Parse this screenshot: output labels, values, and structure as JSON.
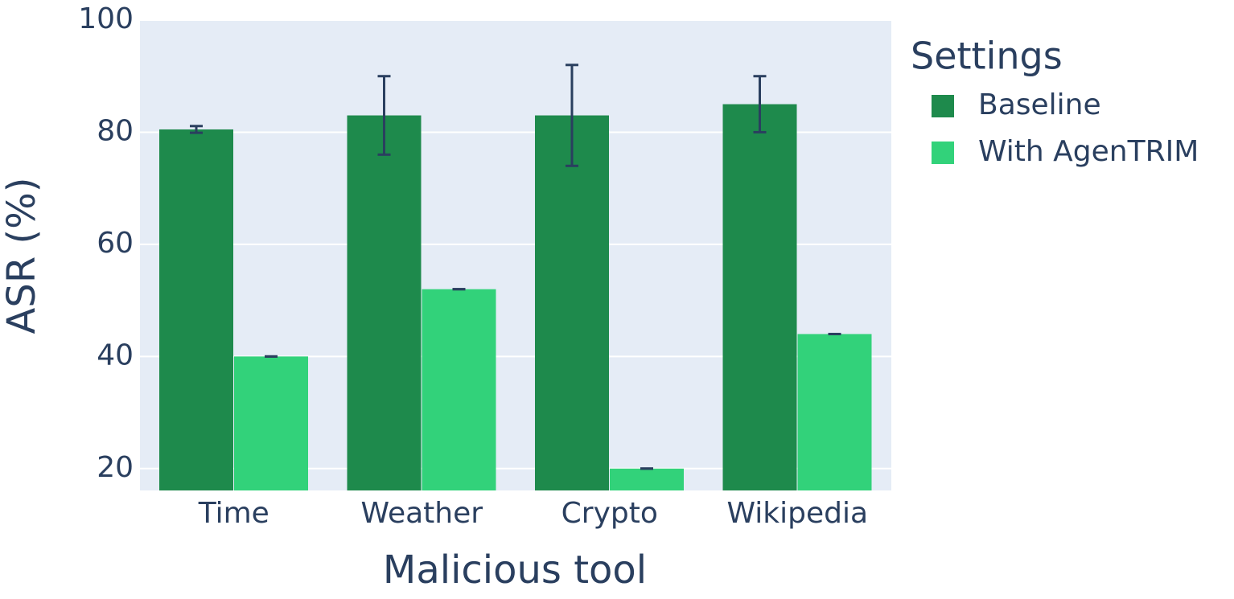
{
  "chart_data": {
    "type": "bar",
    "x_label": "Malicious tool",
    "y_label": "ASR (%)",
    "categories": [
      "Time",
      "Weather",
      "Crypto",
      "Wikipedia"
    ],
    "series": [
      {
        "name": "Baseline",
        "color": "#1e8a4c",
        "values": [
          80.5,
          83,
          83,
          85
        ],
        "errors": [
          0.6,
          7,
          9,
          5
        ]
      },
      {
        "name": "With AgenTRIM",
        "color": "#32d27a",
        "values": [
          40,
          52,
          20,
          44
        ],
        "errors": [
          0,
          0,
          0,
          0
        ]
      }
    ],
    "ylim": [
      16.1,
      100
    ],
    "yticks": [
      20,
      40,
      60,
      80,
      100
    ],
    "grid": true,
    "legend_title": "Settings",
    "legend_position": "right"
  }
}
